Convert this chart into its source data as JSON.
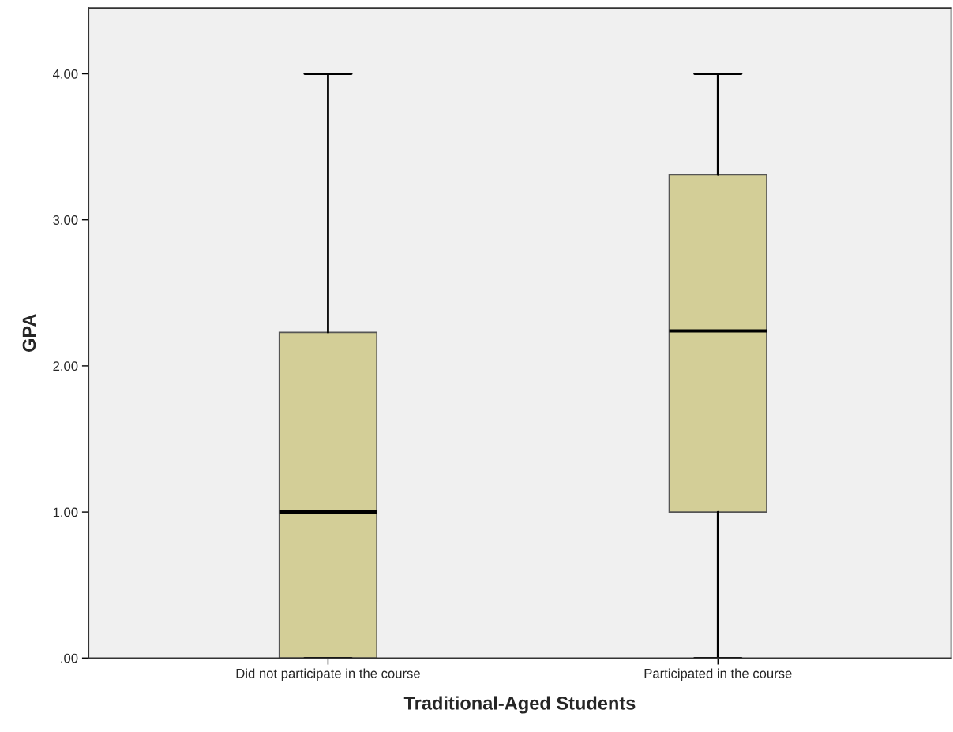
{
  "chart_data": {
    "type": "box",
    "xlabel": "Traditional-Aged Students",
    "ylabel": "GPA",
    "categories": [
      "Did not participate in the course",
      "Participated in the course"
    ],
    "boxes": [
      {
        "low": 0,
        "q1": 0,
        "median": 1.0,
        "q3": 2.23,
        "high": 4.0
      },
      {
        "low": 0,
        "q1": 1.0,
        "median": 2.24,
        "q3": 3.31,
        "high": 4.0
      }
    ],
    "color": "#d3ce97",
    "ylim": [
      0,
      4.45
    ],
    "yticks": [
      {
        "value": 0,
        "label": ".00"
      },
      {
        "value": 1,
        "label": "1.00"
      },
      {
        "value": 2,
        "label": "2.00"
      },
      {
        "value": 3,
        "label": "3.00"
      },
      {
        "value": 4,
        "label": "4.00"
      }
    ],
    "grid": false
  }
}
